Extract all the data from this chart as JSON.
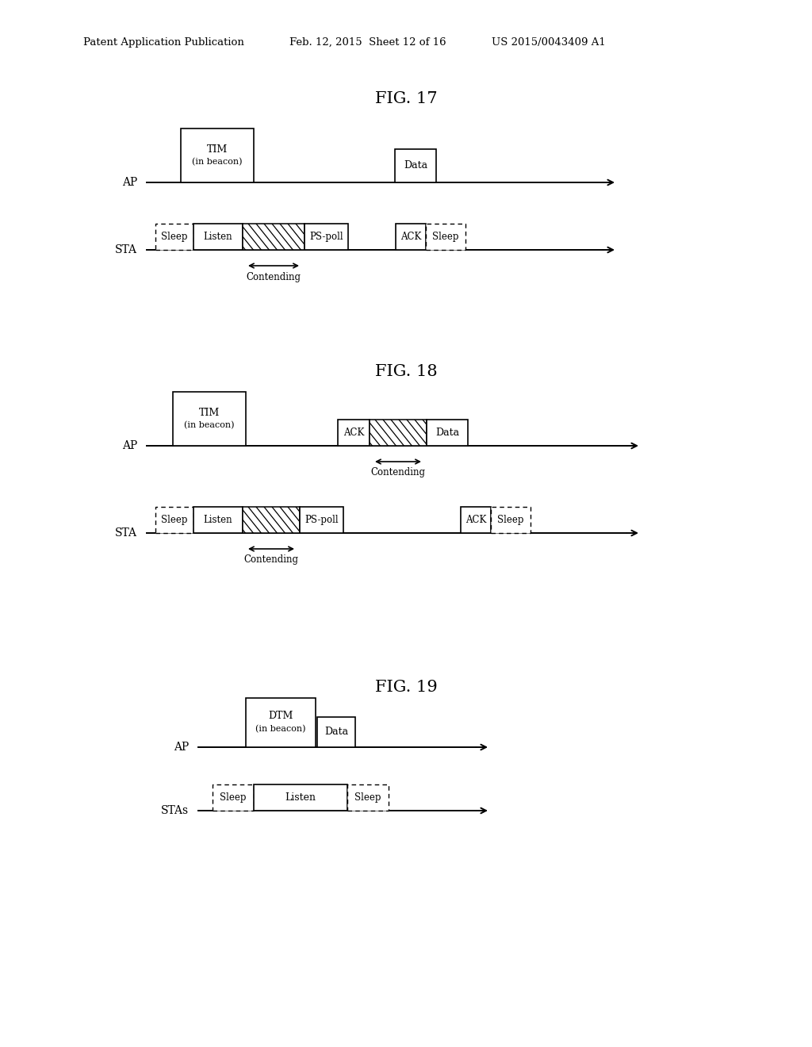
{
  "header_left": "Patent Application Publication",
  "header_mid": "Feb. 12, 2015  Sheet 12 of 16",
  "header_right": "US 2015/0043409 A1",
  "fig17_title": "FIG. 17",
  "fig18_title": "FIG. 18",
  "fig19_title": "FIG. 19",
  "bg_color": "#ffffff"
}
